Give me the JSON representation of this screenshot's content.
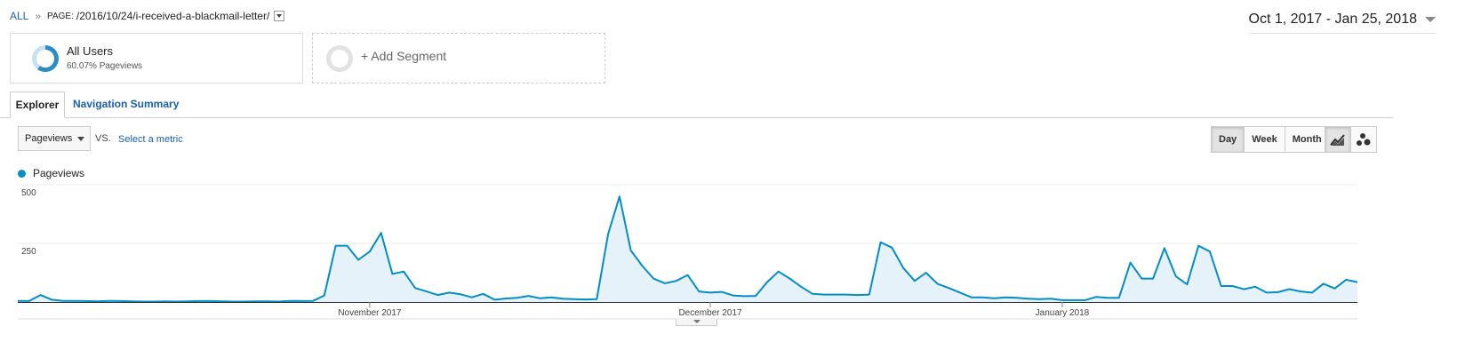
{
  "breadcrumb": {
    "all": "ALL",
    "separator": "»",
    "key": "PAGE:",
    "value": "/2016/10/24/i-received-a-blackmail-letter/"
  },
  "date_range": "Oct 1, 2017 - Jan 25, 2018",
  "segments": {
    "primary": {
      "title": "All Users",
      "subtitle": "60.07% Pageviews",
      "percent": 60.07,
      "color": "#2a8dc5"
    },
    "add": "+ Add Segment"
  },
  "tabs": [
    {
      "label": "Explorer",
      "active": true
    },
    {
      "label": "Navigation Summary",
      "active": false
    }
  ],
  "metric": {
    "selected": "Pageviews",
    "vs": "VS.",
    "select_prompt": "Select a metric"
  },
  "granularity": {
    "day": "Day",
    "week": "Week",
    "month": "Month",
    "active": "Day"
  },
  "chart_icons": {
    "line": "line-chart-icon",
    "motion": "motion-chart-icon"
  },
  "legend": {
    "label": "Pageviews",
    "color": "#058dc7"
  },
  "chart_data": {
    "type": "area",
    "series": [
      {
        "name": "Pageviews",
        "values": [
          5,
          4,
          30,
          10,
          5,
          5,
          4,
          3,
          5,
          4,
          3,
          2,
          2,
          3,
          2,
          3,
          4,
          4,
          3,
          2,
          2,
          3,
          3,
          2,
          5,
          4,
          5,
          28,
          240,
          240,
          180,
          215,
          295,
          120,
          130,
          60,
          45,
          30,
          40,
          33,
          20,
          35,
          10,
          15,
          18,
          26,
          16,
          20,
          14,
          12,
          11,
          12,
          290,
          450,
          220,
          155,
          100,
          80,
          90,
          115,
          45,
          40,
          43,
          28,
          25,
          26,
          85,
          130,
          100,
          65,
          35,
          32,
          32,
          32,
          30,
          32,
          255,
          232,
          145,
          90,
          125,
          78,
          60,
          40,
          20,
          20,
          16,
          20,
          18,
          14,
          12,
          14,
          8,
          8,
          8,
          22,
          18,
          18,
          168,
          100,
          100,
          230,
          110,
          75,
          240,
          215,
          68,
          68,
          55,
          65,
          40,
          42,
          55,
          45,
          40,
          78,
          58,
          95,
          85
        ]
      }
    ],
    "x_tick_labels": [
      "November 2017",
      "December 2017",
      "January 2018"
    ],
    "y_tick_labels": [
      "500",
      "250"
    ],
    "ylim": [
      0,
      500
    ],
    "grid": true
  }
}
